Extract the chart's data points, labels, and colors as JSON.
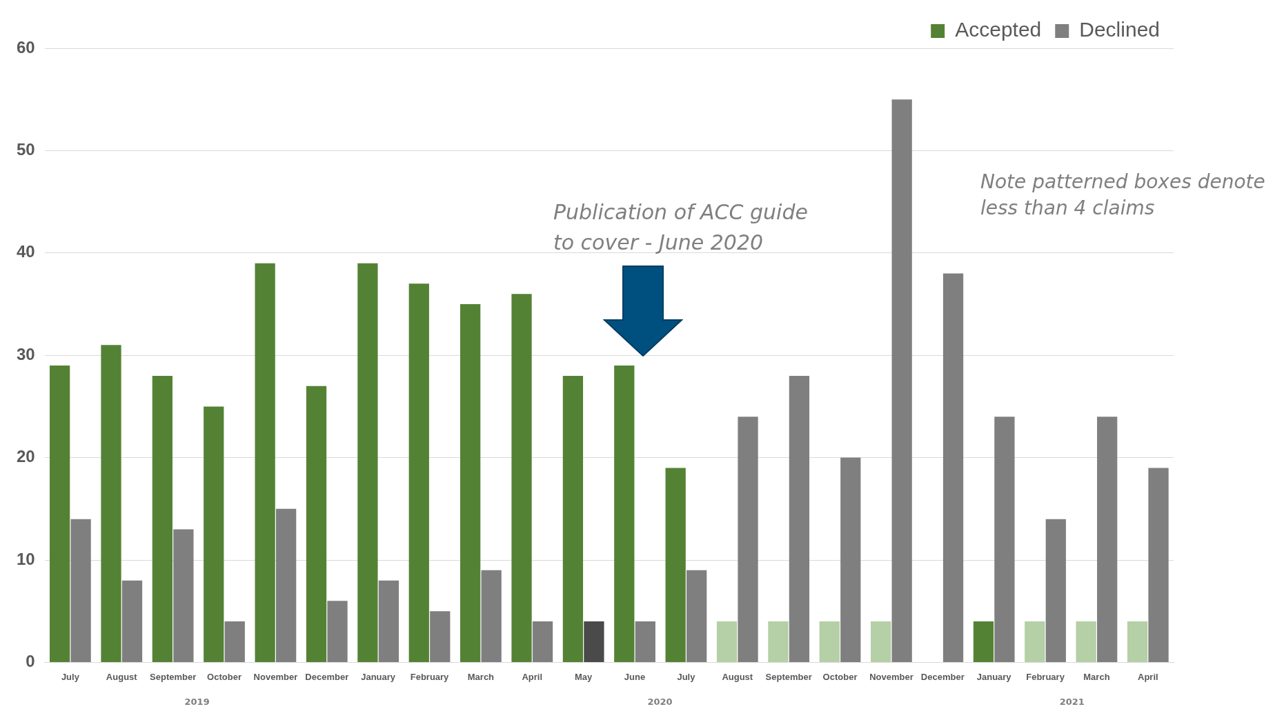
{
  "chart_data": {
    "type": "bar",
    "categories": [
      "July",
      "August",
      "September",
      "October",
      "November",
      "December",
      "January",
      "February",
      "March",
      "April",
      "May",
      "June",
      "July",
      "August",
      "September",
      "October",
      "November",
      "December",
      "January",
      "February",
      "March",
      "April"
    ],
    "series": [
      {
        "name": "Accepted",
        "color": "#548235",
        "values": [
          29,
          31,
          28,
          25,
          39,
          27,
          39,
          37,
          35,
          36,
          28,
          29,
          19,
          4,
          4,
          4,
          4,
          null,
          4,
          4,
          4,
          4
        ],
        "colors": [
          "#548235",
          "#548235",
          "#548235",
          "#548235",
          "#548235",
          "#548235",
          "#548235",
          "#548235",
          "#548235",
          "#548235",
          "#548235",
          "#548235",
          "#548235",
          "#b5cfa6",
          "#b5cfa6",
          "#b5cfa6",
          "#b5cfa6",
          "#548235",
          "#548235",
          "#b5cfa6",
          "#b5cfa6",
          "#b5cfa6"
        ]
      },
      {
        "name": "Declined",
        "color": "#7f7f7f",
        "values": [
          14,
          8,
          13,
          4,
          15,
          6,
          8,
          5,
          9,
          4,
          4,
          4,
          9,
          24,
          28,
          20,
          55,
          38,
          24,
          14,
          24,
          19
        ],
        "colors": [
          "#7f7f7f",
          "#7f7f7f",
          "#7f7f7f",
          "#7f7f7f",
          "#7f7f7f",
          "#7f7f7f",
          "#7f7f7f",
          "#7f7f7f",
          "#7f7f7f",
          "#7f7f7f",
          "#4a4a4a",
          "#7f7f7f",
          "#7f7f7f",
          "#7f7f7f",
          "#7f7f7f",
          "#7f7f7f",
          "#7f7f7f",
          "#7f7f7f",
          "#7f7f7f",
          "#7f7f7f",
          "#7f7f7f",
          "#7f7f7f"
        ]
      }
    ],
    "ylim": [
      0,
      60
    ],
    "yticks": [
      0,
      10,
      20,
      30,
      40,
      50,
      60
    ],
    "grid": "y",
    "legend": "top right",
    "annotations": [
      "Publication of ACC guide to cover - June 2020",
      "Note patterned boxes denote less than 4 claims",
      "2019",
      "2020",
      "2021"
    ]
  }
}
